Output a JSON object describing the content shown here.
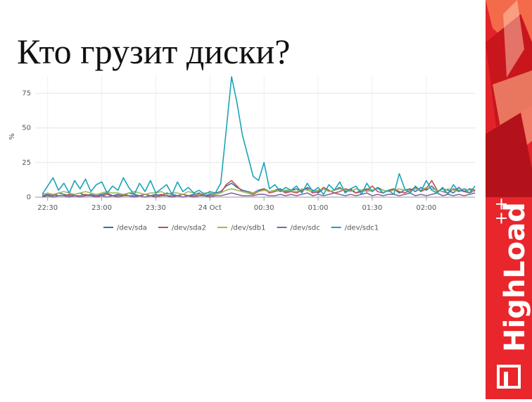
{
  "slide": {
    "title": "Кто грузит диски?"
  },
  "chart_data": {
    "type": "line",
    "ylabel": "%",
    "x": [
      "22:27",
      "22:30",
      "22:33",
      "22:36",
      "22:39",
      "22:42",
      "22:45",
      "22:48",
      "22:51",
      "22:54",
      "22:57",
      "23:00",
      "23:03",
      "23:06",
      "23:09",
      "23:12",
      "23:15",
      "23:18",
      "23:21",
      "23:24",
      "23:27",
      "23:30",
      "23:33",
      "23:36",
      "23:39",
      "23:42",
      "23:45",
      "23:48",
      "23:51",
      "23:54",
      "23:57",
      "00:00",
      "00:03",
      "00:06",
      "00:09",
      "00:12",
      "00:15",
      "00:18",
      "00:21",
      "00:24",
      "00:27",
      "00:30",
      "00:33",
      "00:36",
      "00:39",
      "00:42",
      "00:45",
      "00:48",
      "00:51",
      "00:54",
      "00:57",
      "01:00",
      "01:03",
      "01:06",
      "01:09",
      "01:12",
      "01:15",
      "01:18",
      "01:21",
      "01:24",
      "01:27",
      "01:30",
      "01:33",
      "01:36",
      "01:39",
      "01:42",
      "01:45",
      "01:48",
      "01:51",
      "01:54",
      "01:57",
      "02:00",
      "02:03",
      "02:06",
      "02:09",
      "02:12",
      "02:15",
      "02:18",
      "02:21",
      "02:24",
      "02:27"
    ],
    "xticks": [
      "22:30",
      "23:00",
      "23:30",
      {
        "value": "00:00",
        "label": "24 Oct"
      },
      "00:30",
      "01:00",
      "01:30",
      "02:00"
    ],
    "ylim": [
      0,
      87.5
    ],
    "yticks": [
      0,
      25,
      50,
      75
    ],
    "grid": true,
    "legend": "bottom",
    "series": [
      {
        "name": "/dev/sda",
        "color": "#3d6fa3",
        "values": [
          1,
          2,
          1,
          3,
          2,
          1,
          2,
          3,
          1,
          2,
          1,
          2,
          3,
          1,
          2,
          1,
          3,
          2,
          1,
          2,
          1,
          2,
          1,
          3,
          2,
          1,
          2,
          1,
          2,
          3,
          1,
          2,
          3,
          4,
          8,
          10,
          7,
          5,
          4,
          3,
          5,
          6,
          4,
          5,
          6,
          4,
          5,
          6,
          4,
          7,
          5,
          3,
          6,
          4,
          5,
          7,
          4,
          6,
          3,
          5,
          6,
          4,
          7,
          5,
          4,
          6,
          3,
          5,
          6,
          4,
          7,
          5,
          8,
          4,
          6,
          5,
          3,
          7,
          4,
          6,
          5
        ]
      },
      {
        "name": "/dev/sda2",
        "color": "#c0504d",
        "values": [
          1,
          1,
          2,
          1,
          1,
          2,
          1,
          1,
          2,
          1,
          1,
          1,
          2,
          1,
          1,
          2,
          1,
          1,
          1,
          2,
          1,
          1,
          2,
          1,
          1,
          1,
          2,
          1,
          1,
          2,
          1,
          1,
          2,
          3,
          9,
          12,
          8,
          4,
          3,
          2,
          4,
          6,
          3,
          4,
          5,
          3,
          4,
          3,
          5,
          6,
          3,
          4,
          7,
          5,
          3,
          4,
          6,
          5,
          3,
          4,
          5,
          8,
          4,
          3,
          5,
          6,
          4,
          3,
          5,
          7,
          4,
          6,
          12,
          5,
          4,
          3,
          6,
          5,
          4,
          3,
          5
        ]
      },
      {
        "name": "/dev/sdb1",
        "color": "#9bbb59",
        "values": [
          2,
          3,
          2,
          3,
          4,
          3,
          2,
          3,
          4,
          3,
          2,
          3,
          4,
          3,
          3,
          2,
          3,
          4,
          3,
          2,
          3,
          3,
          4,
          2,
          3,
          3,
          2,
          4,
          3,
          2,
          3,
          3,
          2,
          3,
          5,
          6,
          5,
          4,
          3,
          3,
          4,
          5,
          4,
          5,
          4,
          5,
          5,
          4,
          6,
          5,
          4,
          5,
          6,
          4,
          5,
          6,
          5,
          4,
          6,
          5,
          4,
          5,
          6,
          5,
          4,
          5,
          6,
          5,
          4,
          6,
          5,
          7,
          6,
          5,
          4,
          6,
          5,
          4,
          6,
          5,
          4
        ]
      },
      {
        "name": "/dev/sdc",
        "color": "#8064a2",
        "values": [
          0,
          1,
          0,
          1,
          1,
          0,
          1,
          0,
          1,
          1,
          0,
          1,
          0,
          1,
          0,
          1,
          1,
          0,
          1,
          0,
          1,
          0,
          1,
          1,
          0,
          1,
          0,
          1,
          0,
          1,
          1,
          0,
          1,
          1,
          2,
          3,
          2,
          1,
          1,
          1,
          2,
          2,
          1,
          1,
          2,
          1,
          2,
          1,
          2,
          3,
          1,
          2,
          1,
          2,
          3,
          2,
          1,
          2,
          1,
          2,
          3,
          1,
          2,
          1,
          2,
          2,
          1,
          2,
          3,
          1,
          2,
          1,
          2,
          3,
          1,
          2,
          1,
          2,
          1,
          2,
          3
        ]
      },
      {
        "name": "/dev/sdc1",
        "color": "#1ba3b8",
        "values": [
          2,
          8,
          14,
          5,
          10,
          3,
          12,
          6,
          13,
          4,
          9,
          11,
          3,
          8,
          5,
          14,
          7,
          2,
          10,
          4,
          12,
          3,
          6,
          9,
          2,
          11,
          4,
          7,
          3,
          5,
          2,
          4,
          3,
          10,
          48,
          87,
          68,
          45,
          30,
          15,
          12,
          25,
          6,
          9,
          4,
          7,
          5,
          8,
          3,
          10,
          4,
          7,
          2,
          9,
          5,
          11,
          3,
          6,
          8,
          2,
          10,
          4,
          7,
          3,
          5,
          2,
          17,
          6,
          3,
          8,
          4,
          12,
          5,
          3,
          7,
          2,
          9,
          4,
          6,
          3,
          8
        ]
      }
    ]
  },
  "brand": {
    "name": "HighLoad",
    "suffix": "++"
  }
}
